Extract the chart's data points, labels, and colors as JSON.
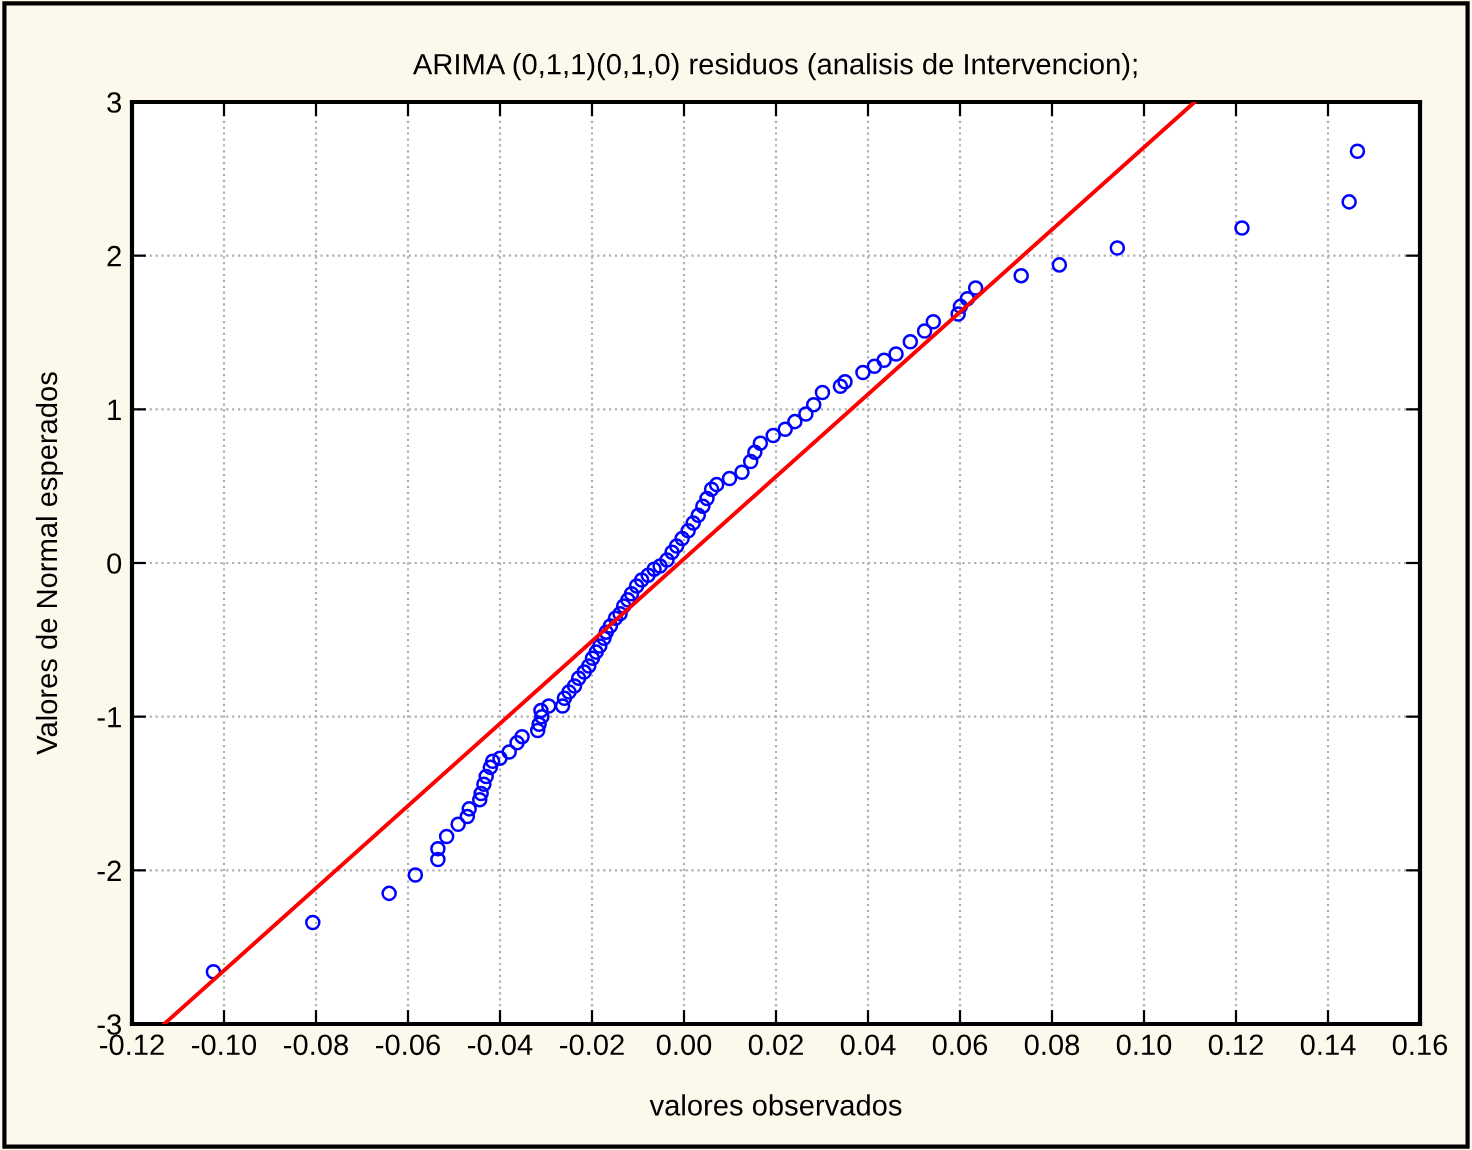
{
  "chart_data": {
    "type": "scatter",
    "title": "ARIMA (0,1,1)(0,1,0) residuos (analisis de Intervencion);",
    "xlabel": "valores observados",
    "ylabel": "Valores de Normal esperados",
    "series": [
      {
        "color": "#0000ff",
        "marker": "circle",
        "x": [
          -0.1023,
          -0.0807,
          -0.0641,
          -0.0584,
          -0.0535,
          -0.0535,
          -0.0516,
          -0.0491,
          -0.0471,
          -0.0467,
          -0.0444,
          -0.0441,
          -0.0435,
          -0.043,
          -0.0421,
          -0.0416,
          -0.04,
          -0.038,
          -0.0363,
          -0.0352,
          -0.0318,
          -0.0315,
          -0.0309,
          -0.0311,
          -0.0294,
          -0.0264,
          -0.026,
          -0.025,
          -0.0238,
          -0.0229,
          -0.0217,
          -0.0207,
          -0.0199,
          -0.0191,
          -0.0183,
          -0.0174,
          -0.0169,
          -0.016,
          -0.0149,
          -0.0139,
          -0.0131,
          -0.0122,
          -0.0114,
          -0.0103,
          -0.0092,
          -0.0078,
          -0.0065,
          -0.0052,
          -0.0037,
          -0.0026,
          -0.0016,
          -0.0004,
          0.0009,
          0.002,
          0.0031,
          0.0041,
          0.005,
          0.006,
          0.0071,
          0.0099,
          0.0126,
          0.0145,
          0.0154,
          0.0166,
          0.0194,
          0.022,
          0.0241,
          0.0265,
          0.0282,
          0.0301,
          0.034,
          0.035,
          0.0389,
          0.0414,
          0.0435,
          0.0461,
          0.0492,
          0.0523,
          0.0542,
          0.0596,
          0.0601,
          0.0616,
          0.0634,
          0.0733,
          0.0816,
          0.0942,
          0.1213,
          0.1446,
          0.1464
        ],
        "values": [
          -2.66,
          -2.34,
          -2.15,
          -2.03,
          -1.93,
          -1.86,
          -1.78,
          -1.7,
          -1.65,
          -1.6,
          -1.54,
          -1.5,
          -1.44,
          -1.39,
          -1.33,
          -1.29,
          -1.27,
          -1.23,
          -1.17,
          -1.13,
          -1.09,
          -1.05,
          -1.0,
          -0.96,
          -0.93,
          -0.93,
          -0.88,
          -0.84,
          -0.8,
          -0.75,
          -0.71,
          -0.67,
          -0.62,
          -0.58,
          -0.54,
          -0.49,
          -0.45,
          -0.41,
          -0.36,
          -0.33,
          -0.28,
          -0.24,
          -0.2,
          -0.15,
          -0.11,
          -0.08,
          -0.04,
          -0.02,
          0.02,
          0.07,
          0.11,
          0.16,
          0.21,
          0.26,
          0.31,
          0.37,
          0.42,
          0.48,
          0.51,
          0.55,
          0.59,
          0.66,
          0.72,
          0.78,
          0.83,
          0.87,
          0.92,
          0.97,
          1.03,
          1.11,
          1.15,
          1.18,
          1.24,
          1.28,
          1.32,
          1.36,
          1.44,
          1.51,
          1.57,
          1.62,
          1.67,
          1.72,
          1.79,
          1.87,
          1.94,
          2.05,
          2.18,
          2.35,
          2.68
        ]
      },
      {
        "type": "line",
        "color": "#ff0000",
        "marker": "none",
        "line_style": "solid",
        "x": [
          -0.113,
          0.111
        ],
        "values": [
          -3,
          3
        ]
      }
    ],
    "xlim": [
      -0.12,
      0.16
    ],
    "xticks": [
      {
        "value": -0.12,
        "label": "-0.12"
      },
      {
        "value": -0.1,
        "label": "-0.10"
      },
      {
        "value": -0.08,
        "label": "-0.08"
      },
      {
        "value": -0.06,
        "label": "-0.06"
      },
      {
        "value": -0.04,
        "label": "-0.04"
      },
      {
        "value": -0.02,
        "label": "-0.02"
      },
      {
        "value": 0,
        "label": "0.00"
      },
      {
        "value": 0.02,
        "label": "0.02"
      },
      {
        "value": 0.04,
        "label": "0.04"
      },
      {
        "value": 0.06,
        "label": "0.06"
      },
      {
        "value": 0.08,
        "label": "0.08"
      },
      {
        "value": 0.1,
        "label": "0.10"
      },
      {
        "value": 0.12,
        "label": "0.12"
      },
      {
        "value": 0.14,
        "label": "0.14"
      },
      {
        "value": 0.16,
        "label": "0.16"
      }
    ],
    "ylim": [
      -3,
      3
    ],
    "yticks": [
      -3,
      -2,
      -1,
      0,
      1,
      2,
      3
    ],
    "grid": true
  }
}
